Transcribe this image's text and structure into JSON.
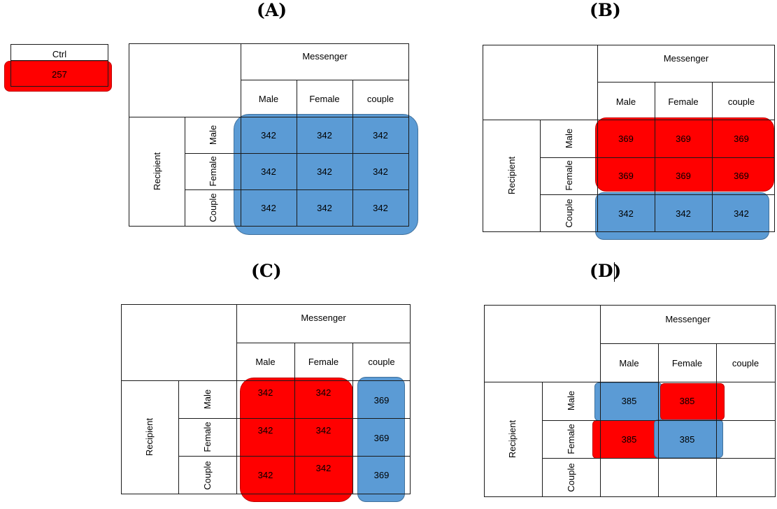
{
  "labels": {
    "panel_a": "(A)",
    "panel_b": "(B)",
    "panel_c": "(C)",
    "panel_d": "(D)",
    "ctrl": "Ctrl",
    "ctrl_value": "257",
    "messenger": "Messenger",
    "recipient": "Recipient",
    "col_male": "Male",
    "col_female": "Female",
    "col_couple": "couple",
    "row_male": "Male",
    "row_female": "Female",
    "row_couple": "Couple"
  },
  "panel_a": {
    "rows": [
      [
        "342",
        "342",
        "342"
      ],
      [
        "342",
        "342",
        "342"
      ],
      [
        "342",
        "342",
        "342"
      ]
    ]
  },
  "panel_b": {
    "rows": [
      [
        "369",
        "369",
        "369"
      ],
      [
        "369",
        "369",
        "369"
      ],
      [
        "342",
        "342",
        "342"
      ]
    ]
  },
  "panel_c": {
    "rows": [
      [
        "342",
        "342",
        "369"
      ],
      [
        "342",
        "342",
        "369"
      ],
      [
        "342",
        "342",
        "369"
      ]
    ]
  },
  "panel_d": {
    "rows": [
      [
        "385",
        "385",
        ""
      ],
      [
        "385",
        "385",
        ""
      ],
      [
        "",
        "",
        ""
      ]
    ]
  },
  "colors": {
    "blue": "#5b9bd5",
    "red": "#ff0000",
    "line": "#1a1a1a"
  }
}
